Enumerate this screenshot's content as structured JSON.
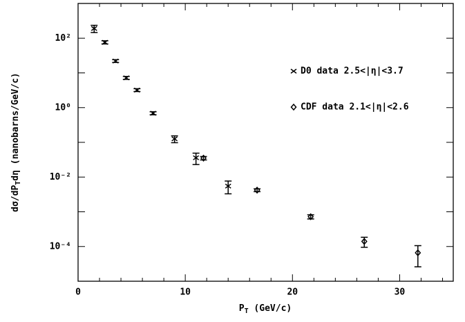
{
  "chart_data": {
    "type": "scatter",
    "x_label_parts": [
      "P",
      "T",
      " (GeV/c)"
    ],
    "y_label_parts": [
      "dσ/dP",
      "T",
      "dη (nanobarns/GeV/c)"
    ],
    "xlim": [
      0,
      35
    ],
    "xticks": [
      0,
      10,
      20,
      30
    ],
    "xminorticks": [
      2,
      4,
      6,
      8,
      12,
      14,
      16,
      18,
      22,
      24,
      26,
      28,
      32,
      34
    ],
    "ylim": [
      1e-05,
      1000
    ],
    "log_y": true,
    "yticks": [
      {
        "value": 0.0001,
        "label": "10⁻⁴"
      },
      {
        "value": 0.01,
        "label": "10⁻²"
      },
      {
        "value": 1,
        "label": "10⁰"
      },
      {
        "value": 100,
        "label": "10²"
      }
    ],
    "yminorticks": [
      1e-05,
      0.001,
      0.1,
      10,
      1000
    ],
    "legend": "upper right",
    "series": [
      {
        "name": "D0 data 2.5<|η|<3.7",
        "marker": "x",
        "color": "#000000",
        "x": [
          1.5,
          2.5,
          3.5,
          4.5,
          5.5,
          7,
          9,
          11,
          14
        ],
        "values": [
          190,
          76,
          22,
          7.2,
          3.2,
          0.69,
          0.126,
          0.036,
          0.0055
        ],
        "errors": [
          45,
          8,
          2,
          0.7,
          0.3,
          0.07,
          0.028,
          0.013,
          0.0022
        ]
      },
      {
        "name": "CDF data 2.1<|η|<2.6",
        "marker": "diamond",
        "color": "#000000",
        "x": [
          11.7,
          16.7,
          21.7,
          26.7,
          31.7
        ],
        "values": [
          0.035,
          0.0042,
          0.00072,
          0.00014,
          6.6e-05
        ],
        "errors": [
          0.004,
          0.0004,
          0.0001,
          4.5e-05,
          4e-05
        ]
      }
    ]
  }
}
